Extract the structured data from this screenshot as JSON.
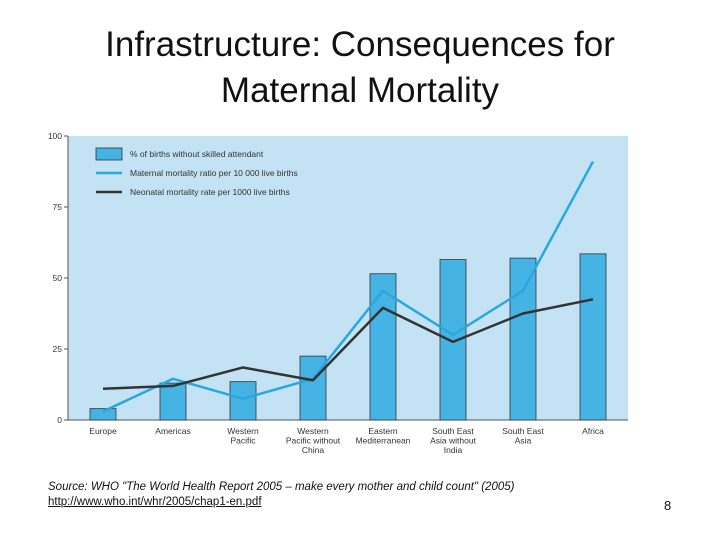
{
  "slide": {
    "title_line1": "Infrastructure: Consequences for",
    "title_line2": "Maternal Mortality",
    "source_text": "Source: WHO \"The World Health Report 2005 – make every mother and child count\" (2005)",
    "source_link": "http://www.who.int/whr/2005/chap1-en.pdf",
    "page_number": "8"
  },
  "chart_data": {
    "type": "bar",
    "categories": [
      [
        "Europe"
      ],
      [
        "Americas"
      ],
      [
        "Western",
        "Pacific"
      ],
      [
        "Western",
        "Pacific without",
        "China"
      ],
      [
        "Eastern",
        "Mediterranean"
      ],
      [
        "South East",
        "Asia without",
        "India"
      ],
      [
        "South East",
        "Asia"
      ],
      [
        "Africa"
      ]
    ],
    "ylim": [
      0,
      100
    ],
    "yticks": [
      0,
      25,
      50,
      75,
      100
    ],
    "grid": false,
    "legend_position": "top-left",
    "colors": {
      "plot_background": "#c3e3f5",
      "bar": "#45b4e4",
      "bar_edge": "#333333",
      "maternal_line": "#29a7de",
      "neonatal_line": "#333333"
    },
    "series": [
      {
        "name": "% of births without skilled attendant",
        "kind": "bar",
        "values": [
          4,
          13,
          13.5,
          22.5,
          51.5,
          56.5,
          57,
          58.5
        ]
      },
      {
        "name": "Maternal mortality ratio per 10 000 live births",
        "kind": "line",
        "values": [
          3,
          14.5,
          7.5,
          14.5,
          45.5,
          30,
          45.5,
          91
        ]
      },
      {
        "name": "Neonatal mortality rate per 1000 live births",
        "kind": "line",
        "values": [
          11,
          12,
          18.5,
          14,
          39.5,
          27.5,
          37.5,
          42.5
        ]
      }
    ]
  }
}
